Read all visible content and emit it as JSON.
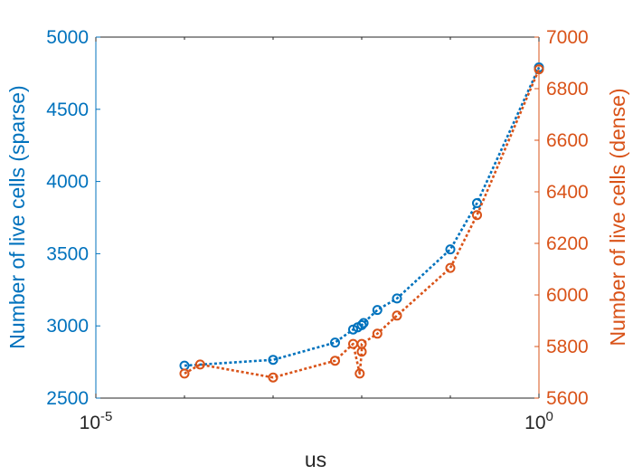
{
  "chart_data": {
    "type": "line",
    "xscale": "log",
    "xlabel": "us",
    "xlim": [
      1e-05,
      1
    ],
    "xticks": [
      {
        "value": 1e-05,
        "base": "10",
        "exp": "-5"
      },
      {
        "value": 1,
        "base": "10",
        "exp": "0"
      }
    ],
    "left_axis": {
      "label": "Number of live cells (sparse)",
      "ylim": [
        2500,
        5000
      ],
      "ticks": [
        "2500",
        "3000",
        "3500",
        "4000",
        "4500",
        "5000"
      ],
      "color": "#0072BD"
    },
    "right_axis": {
      "label": "Number of live cells (dense)",
      "ylim": [
        5600,
        7000
      ],
      "ticks": [
        "5600",
        "5800",
        "6000",
        "6200",
        "6400",
        "6600",
        "6800",
        "7000"
      ],
      "color": "#D95319"
    },
    "grid": false,
    "series": [
      {
        "axis": "left",
        "color": "#0072BD",
        "x": [
          0.0001,
          0.001,
          0.005,
          0.008,
          0.009,
          0.01,
          0.0105,
          0.015,
          0.025,
          0.1,
          0.2,
          1
        ],
        "y": [
          2725,
          2765,
          2885,
          2975,
          2990,
          3005,
          3020,
          3110,
          3190,
          3530,
          3850,
          4790
        ]
      },
      {
        "axis": "right",
        "color": "#D95319",
        "x": [
          0.0001,
          0.00015,
          0.001,
          0.005,
          0.008,
          0.0095,
          0.01,
          0.01,
          0.015,
          0.025,
          0.1,
          0.2,
          1
        ],
        "y": [
          5695,
          5730,
          5680,
          5745,
          5810,
          5695,
          5780,
          5810,
          5850,
          5920,
          6105,
          6310,
          6875
        ]
      }
    ]
  }
}
